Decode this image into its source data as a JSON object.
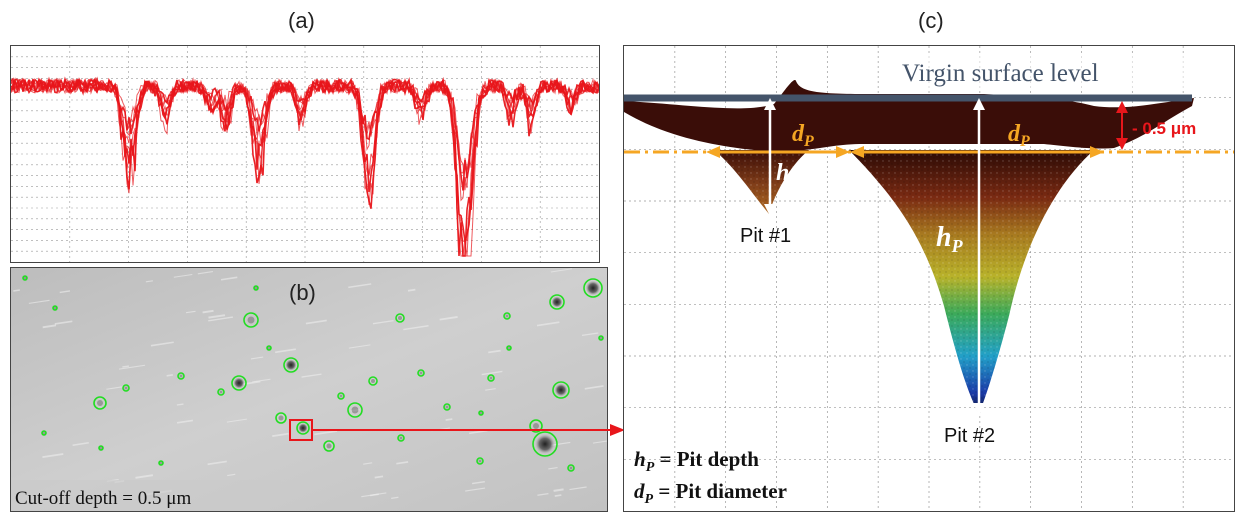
{
  "labels": {
    "a": "(a)",
    "b": "(b)",
    "c": "(c)"
  },
  "panel_b": {
    "cutoff_text": "Cut-off depth = 0.5 μm"
  },
  "panel_c": {
    "virgin_surface": "Virgin surface level",
    "offset_label": "- 0.5 μm",
    "pit1_label": "Pit #1",
    "pit2_label": "Pit #2",
    "dp_symbol": "d",
    "dp_sub": "P",
    "hp_symbol": "h",
    "hp_sub": "P",
    "legend_hp_rest": " = Pit depth",
    "legend_dp_rest": " = Pit diameter"
  },
  "colors": {
    "profile_red": "#e8161b",
    "contour_green": "#22dd22",
    "surface_line": "#44546a",
    "cutoff_orange": "#f5a623",
    "marker_red": "#e8161b"
  }
}
